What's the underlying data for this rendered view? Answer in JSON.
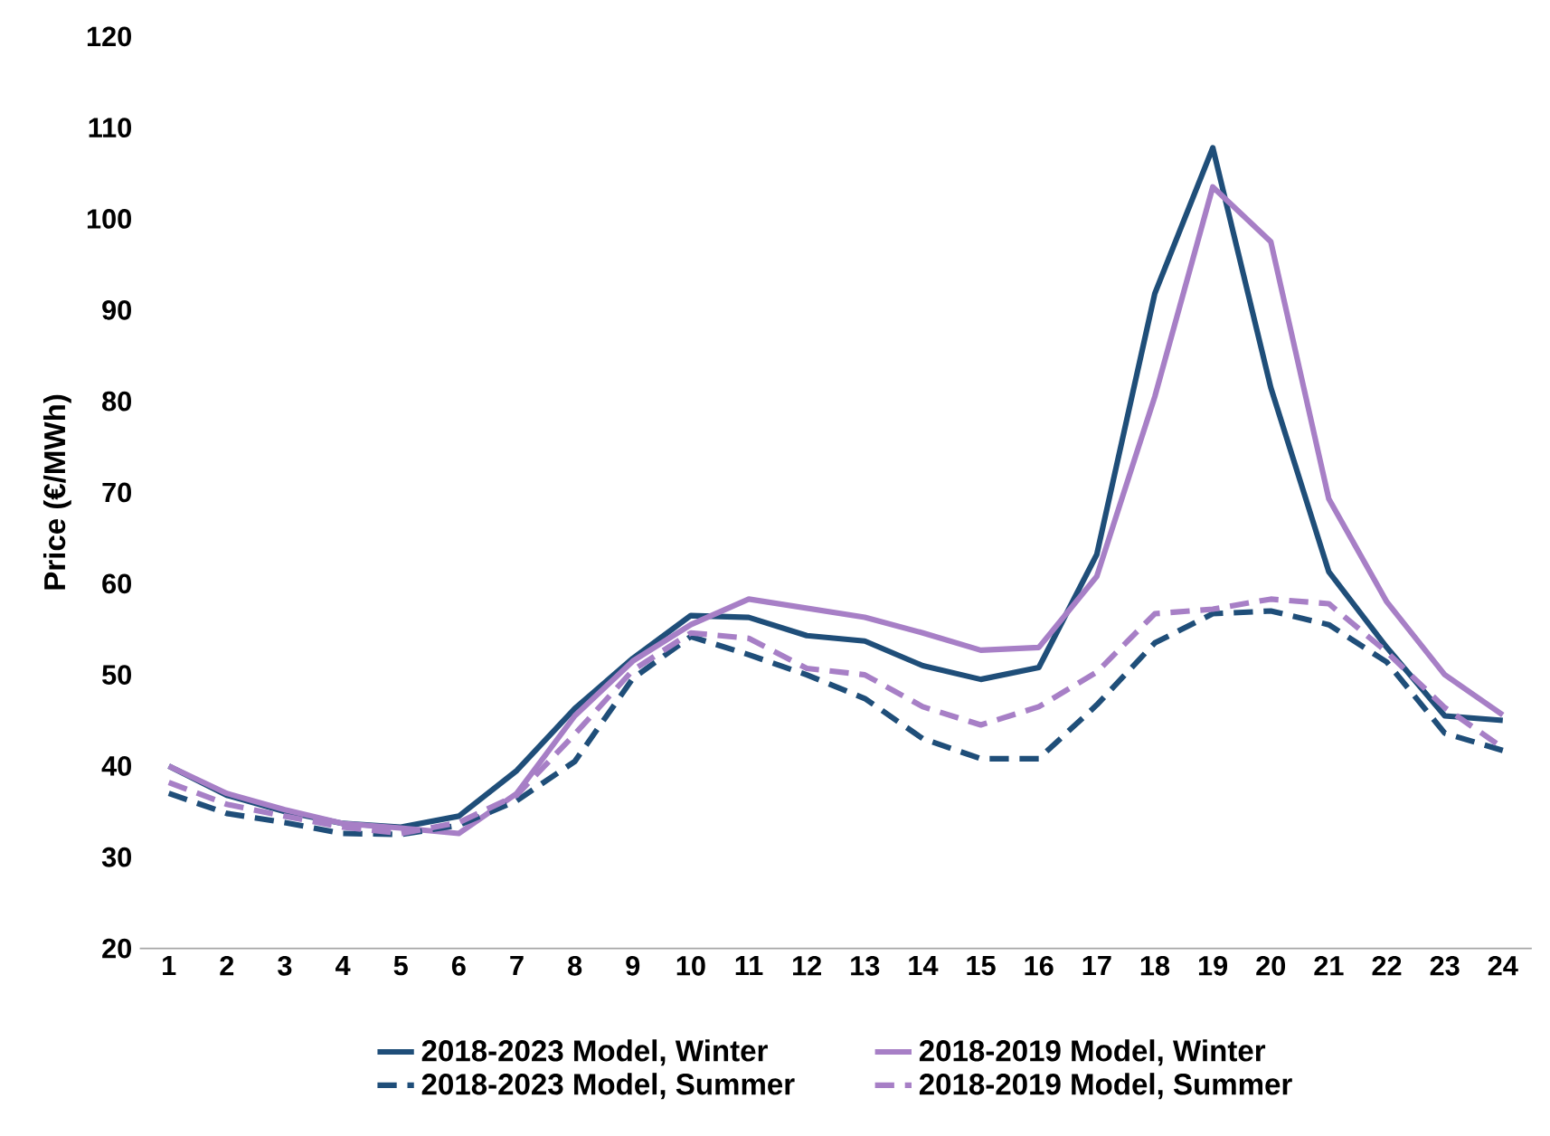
{
  "chart_data": {
    "type": "line",
    "ylabel": "Price (€/MWh)",
    "categories": [
      "1",
      "2",
      "3",
      "4",
      "5",
      "6",
      "7",
      "8",
      "9",
      "10",
      "11",
      "12",
      "13",
      "14",
      "15",
      "16",
      "17",
      "18",
      "19",
      "20",
      "21",
      "22",
      "23",
      "24"
    ],
    "ylim": [
      20,
      120
    ],
    "yticks": [
      20,
      30,
      40,
      50,
      60,
      70,
      80,
      90,
      100,
      110,
      120
    ],
    "grid": false,
    "legend": "bottom",
    "marker": "none",
    "series": [
      {
        "name": "2018-2023 Model, Winter",
        "color": "#1f4e79",
        "line_style": "solid",
        "values": [
          40,
          36.8,
          35,
          33.7,
          33.3,
          34.5,
          39.5,
          46.3,
          51.8,
          56.5,
          56.3,
          54.3,
          53.7,
          51,
          49.5,
          50.8,
          63.2,
          91.8,
          107.8,
          81.5,
          61.3,
          53,
          45.5,
          45
        ]
      },
      {
        "name": "2018-2019 Model, Winter",
        "color": "#a77fc6",
        "line_style": "solid",
        "values": [
          40,
          37,
          35.2,
          33.7,
          33.2,
          32.6,
          37,
          45.5,
          51.5,
          55.5,
          58.3,
          57.3,
          56.3,
          54.6,
          52.7,
          53,
          60.8,
          80.5,
          103.5,
          97.5,
          69.3,
          58,
          50,
          45.6
        ]
      },
      {
        "name": "2018-2023 Model, Summer",
        "color": "#1f4e79",
        "line_style": "dashed",
        "values": [
          37,
          34.8,
          33.8,
          32.6,
          32.5,
          33.5,
          36.2,
          40.5,
          49.6,
          54.2,
          52.2,
          50,
          47.4,
          43,
          40.8,
          40.8,
          46.7,
          53.5,
          56.7,
          57,
          55.5,
          51.4,
          43.6,
          41.7
        ]
      },
      {
        "name": "2018-2019 Model, Summer",
        "color": "#a77fc6",
        "line_style": "dashed",
        "values": [
          38.2,
          35.8,
          34.5,
          33.3,
          32.6,
          33.8,
          36.8,
          43.5,
          50.5,
          54.6,
          54,
          50.7,
          50,
          46.5,
          44.5,
          46.5,
          50.3,
          56.7,
          57.2,
          58.3,
          57.8,
          52.5,
          46.4,
          42
        ]
      }
    ]
  }
}
